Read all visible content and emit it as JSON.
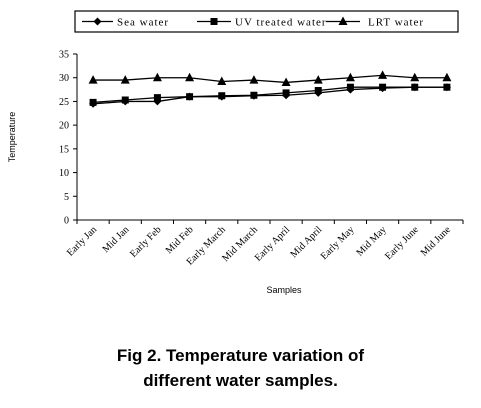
{
  "chart_data": {
    "type": "line",
    "xlabel": "Samples",
    "ylabel": "Temperature",
    "ylim": [
      0,
      35
    ],
    "yticks": [
      "0",
      "5",
      "10",
      "15",
      "20",
      "25",
      "30",
      "35"
    ],
    "categories": [
      "Early Jan",
      "Mid Jan",
      "Early Feb",
      "Mid Feb",
      "Early March",
      "Mid March",
      "Early April",
      "Mid April",
      "Early May",
      "Mid May",
      "Early June",
      "Mid June"
    ],
    "legend_position": "top",
    "grid": false,
    "series": [
      {
        "name": "Sea water",
        "marker": "diamond",
        "values": [
          24.5,
          25,
          25,
          26,
          26,
          26.2,
          26.3,
          26.8,
          27.5,
          27.8,
          28,
          28
        ]
      },
      {
        "name": "UV treated water",
        "marker": "square",
        "values": [
          24.8,
          25.3,
          25.8,
          26,
          26.2,
          26.3,
          26.8,
          27.3,
          28,
          28,
          28,
          28
        ]
      },
      {
        "name": "LRT water",
        "marker": "triangle",
        "values": [
          29.5,
          29.5,
          30,
          30,
          29.2,
          29.5,
          29,
          29.5,
          30,
          30.5,
          30,
          30
        ]
      }
    ]
  },
  "caption": {
    "line1": "Fig 2. Temperature variation of",
    "line2": "different water samples."
  }
}
